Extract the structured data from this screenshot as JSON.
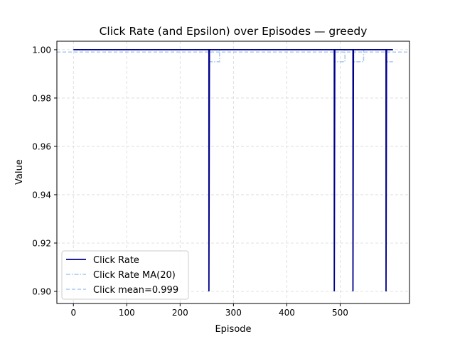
{
  "chart_data": {
    "type": "line",
    "title": "Click Rate (and Epsilon) over Episodes — greedy",
    "xlabel": "Episode",
    "ylabel": "Value",
    "xlim": [
      -31,
      630
    ],
    "ylim": [
      0.895,
      1.0035
    ],
    "x_ticks": [
      0,
      100,
      200,
      300,
      400,
      500
    ],
    "y_ticks": [
      0.9,
      0.92,
      0.94,
      0.96,
      0.98,
      1.0
    ],
    "y_tick_labels": [
      "0.90",
      "0.92",
      "0.94",
      "0.96",
      "0.98",
      "1.00"
    ],
    "grid": true,
    "legend_position": "lower-left",
    "colors": {
      "click_rate": "#00008b",
      "moving_average": "#a6c8f0",
      "mean": "#a6c8f0",
      "grid": "#d9d9d9"
    },
    "series": [
      {
        "name": "Click Rate",
        "style": "solid",
        "points": [
          [
            0,
            1.0
          ],
          [
            254,
            1.0
          ],
          [
            254,
            0.9
          ],
          [
            255,
            1.0
          ],
          [
            489,
            1.0
          ],
          [
            489,
            0.9
          ],
          [
            490,
            1.0
          ],
          [
            524,
            1.0
          ],
          [
            524,
            0.9
          ],
          [
            525,
            1.0
          ],
          [
            586,
            1.0
          ],
          [
            586,
            0.9
          ],
          [
            587,
            1.0
          ],
          [
            599,
            1.0
          ]
        ]
      },
      {
        "name": "Click Rate MA(20)",
        "style": "dashdot",
        "points": [
          [
            0,
            1.0
          ],
          [
            254,
            1.0
          ],
          [
            254,
            0.995
          ],
          [
            274,
            0.995
          ],
          [
            274,
            1.0
          ],
          [
            489,
            1.0
          ],
          [
            489,
            0.995
          ],
          [
            509,
            0.995
          ],
          [
            509,
            1.0
          ],
          [
            524,
            1.0
          ],
          [
            524,
            0.995
          ],
          [
            544,
            0.995
          ],
          [
            544,
            1.0
          ],
          [
            586,
            1.0
          ],
          [
            586,
            0.995
          ],
          [
            599,
            0.995
          ]
        ]
      }
    ],
    "reference_lines": [
      {
        "name": "Click mean=0.999",
        "value": 0.999,
        "style": "dashed"
      }
    ]
  }
}
